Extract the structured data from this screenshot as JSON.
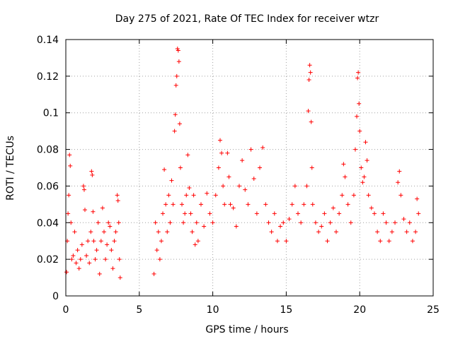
{
  "chart_data": {
    "type": "scatter",
    "title": "Day 275 of 2021, Rate Of TEC Index for receiver wtzr",
    "xlabel": "GPS time / hours",
    "ylabel": "ROTI / TECUs",
    "xlim": [
      0,
      25
    ],
    "ylim": [
      0,
      0.14
    ],
    "xticks": [
      0,
      5,
      10,
      15,
      20,
      25
    ],
    "xtick_labels": [
      "0",
      "5",
      "10",
      "15",
      "20",
      "25"
    ],
    "yticks": [
      0,
      0.02,
      0.04,
      0.06,
      0.08,
      0.1,
      0.12,
      0.14
    ],
    "ytick_labels": [
      "0",
      "0.02",
      "0.04",
      "0.06",
      "0.08",
      "0.1",
      "0.12",
      "0.14"
    ],
    "grid": true,
    "marker": "+",
    "color": "#ff0000",
    "series": [
      {
        "name": "ROTI",
        "points": [
          [
            0.05,
            0.013
          ],
          [
            0.1,
            0.03
          ],
          [
            0.15,
            0.045
          ],
          [
            0.2,
            0.055
          ],
          [
            0.25,
            0.077
          ],
          [
            0.3,
            0.071
          ],
          [
            0.35,
            0.04
          ],
          [
            0.4,
            0.02
          ],
          [
            0.5,
            0.022
          ],
          [
            0.6,
            0.035
          ],
          [
            0.7,
            0.018
          ],
          [
            0.8,
            0.025
          ],
          [
            0.9,
            0.015
          ],
          [
            1.0,
            0.02
          ],
          [
            1.1,
            0.028
          ],
          [
            1.2,
            0.06
          ],
          [
            1.25,
            0.058
          ],
          [
            1.3,
            0.047
          ],
          [
            1.4,
            0.022
          ],
          [
            1.5,
            0.03
          ],
          [
            1.6,
            0.018
          ],
          [
            1.7,
            0.035
          ],
          [
            1.75,
            0.068
          ],
          [
            1.8,
            0.066
          ],
          [
            1.85,
            0.046
          ],
          [
            1.9,
            0.03
          ],
          [
            2.0,
            0.02
          ],
          [
            2.1,
            0.025
          ],
          [
            2.2,
            0.04
          ],
          [
            2.3,
            0.012
          ],
          [
            2.4,
            0.03
          ],
          [
            2.5,
            0.048
          ],
          [
            2.6,
            0.035
          ],
          [
            2.7,
            0.02
          ],
          [
            2.8,
            0.028
          ],
          [
            2.9,
            0.04
          ],
          [
            3.0,
            0.038
          ],
          [
            3.1,
            0.025
          ],
          [
            3.2,
            0.015
          ],
          [
            3.3,
            0.03
          ],
          [
            3.4,
            0.035
          ],
          [
            3.5,
            0.055
          ],
          [
            3.55,
            0.052
          ],
          [
            3.6,
            0.04
          ],
          [
            3.65,
            0.02
          ],
          [
            3.7,
            0.01
          ],
          [
            6.0,
            0.012
          ],
          [
            6.1,
            0.04
          ],
          [
            6.2,
            0.025
          ],
          [
            6.3,
            0.035
          ],
          [
            6.4,
            0.02
          ],
          [
            6.5,
            0.03
          ],
          [
            6.6,
            0.045
          ],
          [
            6.7,
            0.069
          ],
          [
            6.8,
            0.05
          ],
          [
            6.9,
            0.035
          ],
          [
            7.0,
            0.055
          ],
          [
            7.1,
            0.04
          ],
          [
            7.2,
            0.063
          ],
          [
            7.3,
            0.05
          ],
          [
            7.4,
            0.09
          ],
          [
            7.45,
            0.099
          ],
          [
            7.5,
            0.115
          ],
          [
            7.55,
            0.12
          ],
          [
            7.6,
            0.135
          ],
          [
            7.65,
            0.134
          ],
          [
            7.7,
            0.128
          ],
          [
            7.75,
            0.094
          ],
          [
            7.8,
            0.07
          ],
          [
            7.9,
            0.05
          ],
          [
            8.0,
            0.04
          ],
          [
            8.1,
            0.045
          ],
          [
            8.2,
            0.055
          ],
          [
            8.3,
            0.077
          ],
          [
            8.4,
            0.059
          ],
          [
            8.5,
            0.045
          ],
          [
            8.6,
            0.035
          ],
          [
            8.7,
            0.055
          ],
          [
            8.8,
            0.028
          ],
          [
            8.9,
            0.04
          ],
          [
            9.0,
            0.03
          ],
          [
            9.2,
            0.05
          ],
          [
            9.4,
            0.038
          ],
          [
            9.6,
            0.056
          ],
          [
            9.8,
            0.045
          ],
          [
            10.0,
            0.04
          ],
          [
            10.2,
            0.055
          ],
          [
            10.4,
            0.07
          ],
          [
            10.5,
            0.085
          ],
          [
            10.6,
            0.078
          ],
          [
            10.7,
            0.06
          ],
          [
            10.8,
            0.05
          ],
          [
            11.0,
            0.078
          ],
          [
            11.1,
            0.065
          ],
          [
            11.2,
            0.05
          ],
          [
            11.4,
            0.048
          ],
          [
            11.6,
            0.038
          ],
          [
            11.8,
            0.06
          ],
          [
            12.0,
            0.074
          ],
          [
            12.2,
            0.058
          ],
          [
            12.4,
            0.05
          ],
          [
            12.6,
            0.08
          ],
          [
            12.8,
            0.064
          ],
          [
            13.0,
            0.045
          ],
          [
            13.2,
            0.07
          ],
          [
            13.4,
            0.081
          ],
          [
            13.6,
            0.05
          ],
          [
            13.8,
            0.04
          ],
          [
            14.0,
            0.035
          ],
          [
            14.2,
            0.045
          ],
          [
            14.4,
            0.03
          ],
          [
            14.6,
            0.038
          ],
          [
            14.8,
            0.04
          ],
          [
            15.0,
            0.03
          ],
          [
            15.2,
            0.042
          ],
          [
            15.4,
            0.05
          ],
          [
            15.6,
            0.06
          ],
          [
            15.8,
            0.045
          ],
          [
            16.0,
            0.04
          ],
          [
            16.2,
            0.05
          ],
          [
            16.4,
            0.06
          ],
          [
            16.5,
            0.101
          ],
          [
            16.55,
            0.118
          ],
          [
            16.6,
            0.126
          ],
          [
            16.65,
            0.122
          ],
          [
            16.7,
            0.095
          ],
          [
            16.75,
            0.07
          ],
          [
            16.8,
            0.05
          ],
          [
            17.0,
            0.04
          ],
          [
            17.2,
            0.035
          ],
          [
            17.4,
            0.038
          ],
          [
            17.6,
            0.045
          ],
          [
            17.8,
            0.03
          ],
          [
            18.0,
            0.04
          ],
          [
            18.2,
            0.048
          ],
          [
            18.4,
            0.035
          ],
          [
            18.6,
            0.045
          ],
          [
            18.8,
            0.055
          ],
          [
            18.9,
            0.072
          ],
          [
            19.0,
            0.065
          ],
          [
            19.2,
            0.05
          ],
          [
            19.4,
            0.04
          ],
          [
            19.6,
            0.055
          ],
          [
            19.7,
            0.08
          ],
          [
            19.8,
            0.098
          ],
          [
            19.85,
            0.119
          ],
          [
            19.9,
            0.122
          ],
          [
            19.95,
            0.105
          ],
          [
            20.0,
            0.09
          ],
          [
            20.1,
            0.07
          ],
          [
            20.2,
            0.062
          ],
          [
            20.3,
            0.065
          ],
          [
            20.4,
            0.084
          ],
          [
            20.5,
            0.074
          ],
          [
            20.6,
            0.055
          ],
          [
            20.8,
            0.048
          ],
          [
            21.0,
            0.045
          ],
          [
            21.2,
            0.035
          ],
          [
            21.4,
            0.03
          ],
          [
            21.6,
            0.045
          ],
          [
            21.8,
            0.04
          ],
          [
            22.0,
            0.03
          ],
          [
            22.2,
            0.035
          ],
          [
            22.4,
            0.04
          ],
          [
            22.6,
            0.062
          ],
          [
            22.7,
            0.068
          ],
          [
            22.8,
            0.055
          ],
          [
            23.0,
            0.042
          ],
          [
            23.2,
            0.035
          ],
          [
            23.4,
            0.04
          ],
          [
            23.6,
            0.03
          ],
          [
            23.8,
            0.035
          ],
          [
            23.9,
            0.053
          ],
          [
            24.0,
            0.045
          ]
        ]
      }
    ]
  }
}
